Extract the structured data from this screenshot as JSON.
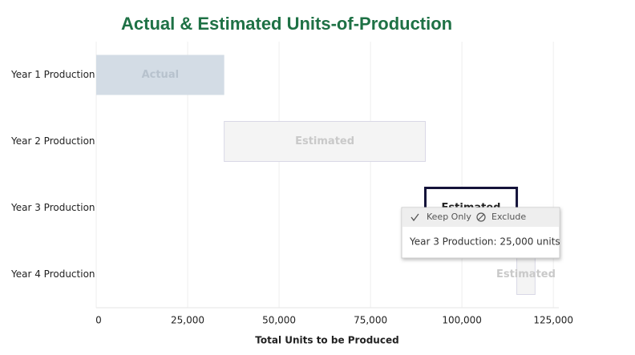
{
  "chart_data": {
    "type": "waterfall",
    "title": "Actual & Estimated Units-of-Production",
    "categories": [
      "Year 1 Production",
      "Year 2 Production",
      "Year 3 Production",
      "Year 4 Production"
    ],
    "values": [
      35000,
      55000,
      25000,
      5000
    ],
    "bar_labels": [
      "Actual",
      "Estimated",
      "Estimated",
      "Estimated"
    ],
    "colors": [
      "#d3dce5",
      "#f4f4f4",
      "#ffffff",
      "#f4f4f4"
    ],
    "x_label": "Total Units to be Produced",
    "xlim": [
      0,
      126500
    ],
    "xticks": [
      0,
      {
        "value": 25000,
        "label": "25,000"
      },
      {
        "value": 50000,
        "label": "50,000"
      },
      {
        "value": 75000,
        "label": "75,000"
      },
      {
        "value": 100000,
        "label": "100,000"
      },
      {
        "value": 125000,
        "label": "125,000"
      }
    ],
    "grid": true,
    "tooltip": {
      "actions": [
        "Keep Only",
        "Exclude"
      ],
      "text": "Year 3 Production: 25,000 units",
      "category_index": 2
    }
  }
}
